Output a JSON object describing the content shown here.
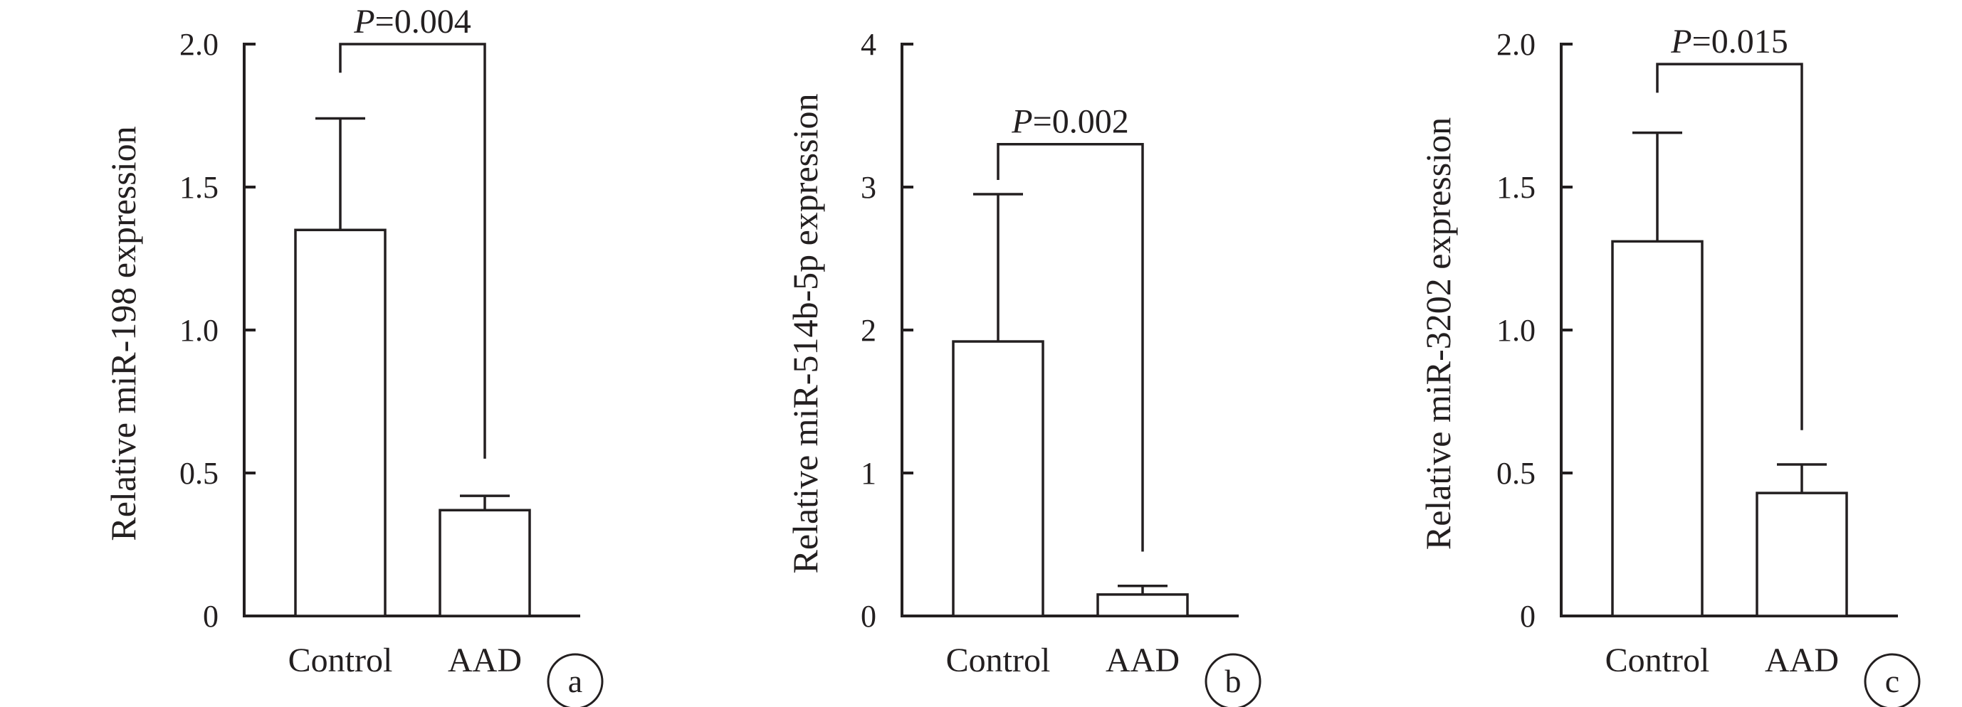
{
  "figure": {
    "panels": [
      "a",
      "b",
      "c"
    ]
  },
  "chart_data": [
    {
      "type": "bar",
      "panel_label": "a",
      "categories": [
        "Control",
        "AAD"
      ],
      "values": [
        1.35,
        0.37
      ],
      "error_upper": [
        1.74,
        0.42
      ],
      "ylabel": "Relative miR-198 expression",
      "xlabel": "",
      "ylim": [
        0,
        2.0
      ],
      "yticks": [
        "0",
        "0.5",
        "1.0",
        "1.5",
        "2.0"
      ],
      "significance": {
        "p_symbol": "P",
        "p_text": "=0.004",
        "bracket_top": 2.0,
        "bracket_end": [
          1.9,
          0.55
        ]
      }
    },
    {
      "type": "bar",
      "panel_label": "b",
      "categories": [
        "Control",
        "AAD"
      ],
      "values": [
        1.92,
        0.15
      ],
      "error_upper": [
        2.95,
        0.21
      ],
      "ylabel": "Relative miR-514b-5p expression",
      "xlabel": "",
      "ylim": [
        0,
        4
      ],
      "yticks": [
        "0",
        "1",
        "2",
        "3",
        "4"
      ],
      "significance": {
        "p_symbol": "P",
        "p_text": "=0.002",
        "bracket_top": 3.3,
        "bracket_end": [
          3.05,
          0.45
        ]
      }
    },
    {
      "type": "bar",
      "panel_label": "c",
      "categories": [
        "Control",
        "AAD"
      ],
      "values": [
        1.31,
        0.43
      ],
      "error_upper": [
        1.69,
        0.53
      ],
      "ylabel": "Relative miR-3202 expression",
      "xlabel": "",
      "ylim": [
        0,
        2.0
      ],
      "yticks": [
        "0",
        "0.5",
        "1.0",
        "1.5",
        "2.0"
      ],
      "significance": {
        "p_symbol": "P",
        "p_text": "=0.015",
        "bracket_top": 1.93,
        "bracket_end": [
          1.83,
          0.65
        ]
      }
    }
  ]
}
